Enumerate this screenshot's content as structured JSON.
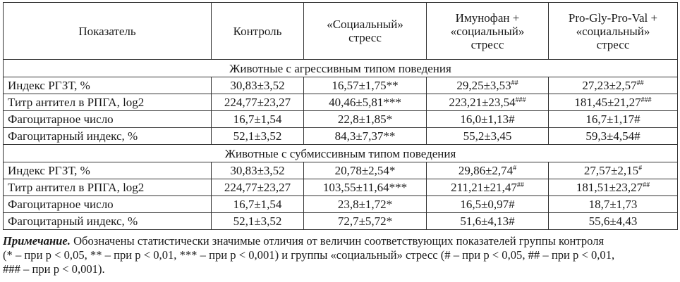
{
  "table": {
    "headers": [
      [
        "Показатель"
      ],
      [
        "Контроль"
      ],
      [
        "«Социальный»",
        "стресс"
      ],
      [
        "Имунофан +",
        "«социальный»",
        "стресс"
      ],
      [
        "Pro-Gly-Pro-Val +",
        "«социальный»",
        "стресс"
      ]
    ],
    "groups": [
      {
        "title": "Животные с агрессивным типом поведения",
        "rows": [
          {
            "label": "Индекс РГЗТ, %",
            "cells": [
              {
                "v": "30,83±3,52"
              },
              {
                "v": "16,57±1,75**"
              },
              {
                "v": "29,25±3,53",
                "sup": "##"
              },
              {
                "v": "27,23±2,57",
                "sup": "##"
              }
            ]
          },
          {
            "label": "Титр антител в РПГА, log2",
            "cells": [
              {
                "v": "224,77±23,27"
              },
              {
                "v": "40,46±5,81***"
              },
              {
                "v": "223,21±23,54",
                "sup": "###"
              },
              {
                "v": "181,45±21,27",
                "sup": "###"
              }
            ]
          },
          {
            "label": "Фагоцитарное число",
            "cells": [
              {
                "v": "16,7±1,54"
              },
              {
                "v": "22,8±1,85*"
              },
              {
                "v": "16,0±1,13#"
              },
              {
                "v": "16,7±1,17#"
              }
            ]
          },
          {
            "label": "Фагоцитарный индекс, %",
            "cells": [
              {
                "v": "52,1±3,52"
              },
              {
                "v": "84,3±7,37**"
              },
              {
                "v": "55,2±3,45"
              },
              {
                "v": "59,3±4,54#"
              }
            ]
          }
        ]
      },
      {
        "title": "Животные с субмиссивным типом поведения",
        "rows": [
          {
            "label": "Индекс РГЗТ, %",
            "cells": [
              {
                "v": "30,83±3,52"
              },
              {
                "v": "20,78±2,54*"
              },
              {
                "v": "29,86±2,74",
                "sup": "#"
              },
              {
                "v": "27,57±2,15",
                "sup": "#"
              }
            ]
          },
          {
            "label": "Титр антител в РПГА, log2",
            "cells": [
              {
                "v": "224,77±23,27"
              },
              {
                "v": "103,55±11,64***"
              },
              {
                "v": "211,21±21,47",
                "sup": "##"
              },
              {
                "v": "181,51±23,27",
                "sup": "##"
              }
            ]
          },
          {
            "label": "Фагоцитарное число",
            "cells": [
              {
                "v": "16,7±1,54"
              },
              {
                "v": "23,8±1,72*"
              },
              {
                "v": "16,5±0,97#"
              },
              {
                "v": "18,7±1,73"
              }
            ]
          },
          {
            "label": "Фагоцитарный индекс, %",
            "cells": [
              {
                "v": "52,1±3,52"
              },
              {
                "v": "72,7±5,72*"
              },
              {
                "v": "51,6±4,13#"
              },
              {
                "v": "55,6±4,43"
              }
            ]
          }
        ]
      }
    ]
  },
  "note": {
    "label": "Примечание.",
    "lines": [
      " Обозначены статистически значимые отличия от величин соответствующих показателей группы контроля",
      "(* – при p < 0,05, ** – при p < 0,01, *** – при p < 0,001) и  группы «социальный» стресс (# – при p < 0,05, ## – при p < 0,01,",
      "### – при p < 0,001)."
    ]
  }
}
